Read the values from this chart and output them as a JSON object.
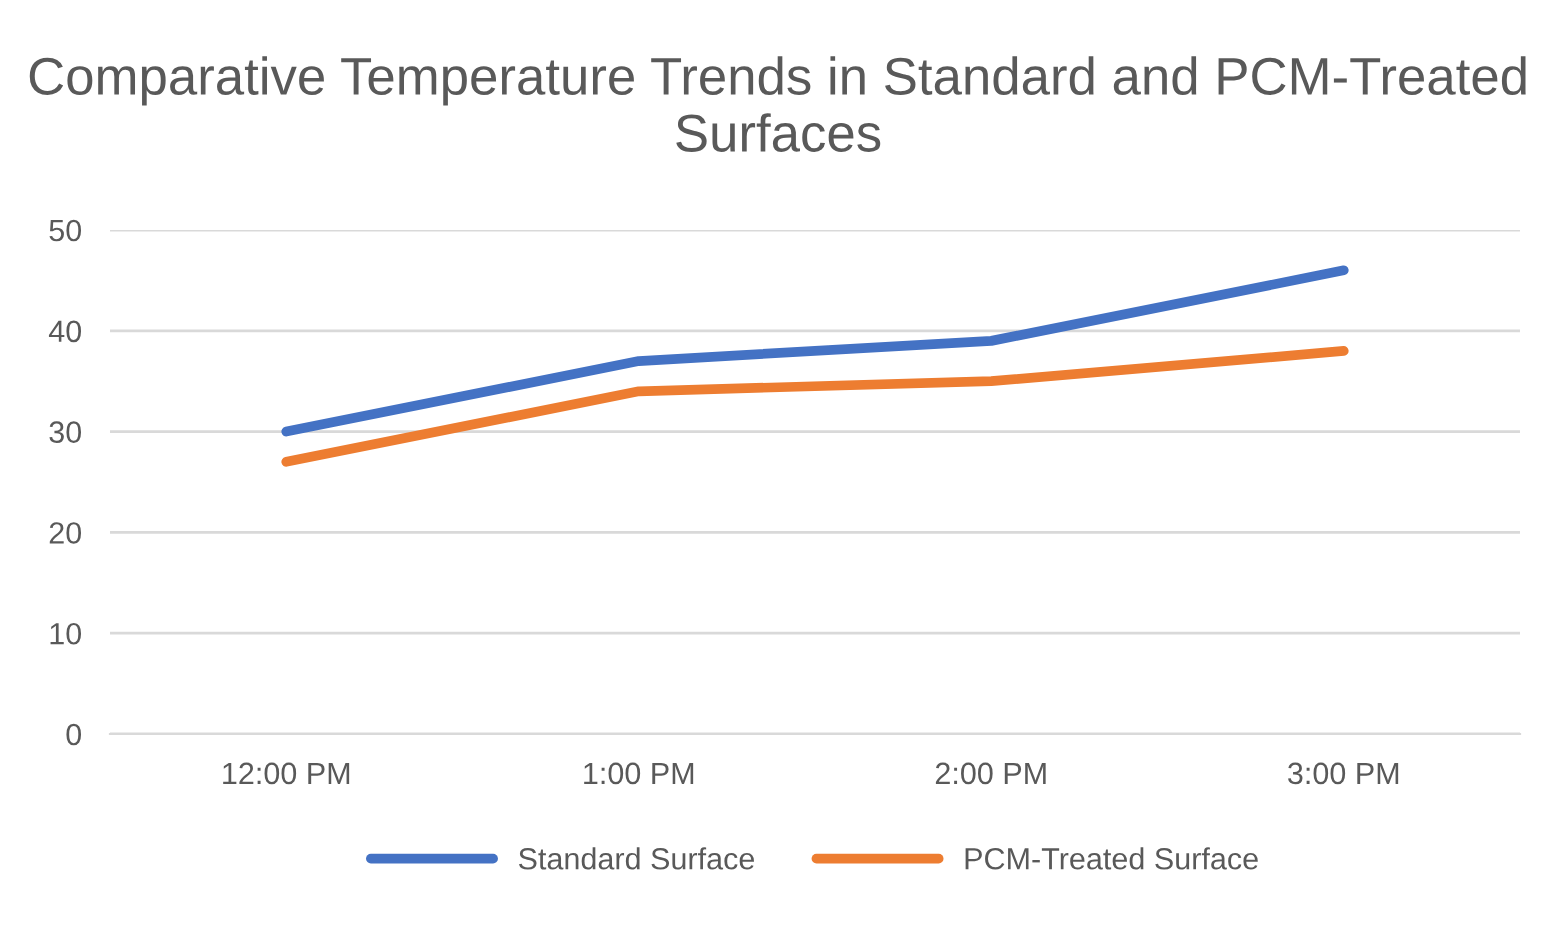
{
  "chart_data": {
    "type": "line",
    "title": "Comparative Temperature Trends in Standard and PCM-Treated Surfaces",
    "categories": [
      "12:00 PM",
      "1:00 PM",
      "2:00 PM",
      "3:00 PM"
    ],
    "series": [
      {
        "name": "Standard Surface",
        "color": "#4472c4",
        "values": [
          30,
          37,
          39,
          46
        ]
      },
      {
        "name": "PCM-Treated Surface",
        "color": "#ed7d31",
        "values": [
          27,
          34,
          35,
          38
        ]
      }
    ],
    "ylim": [
      0,
      50
    ],
    "yticks": [
      0,
      10,
      20,
      30,
      40,
      50
    ],
    "grid": "y",
    "legend": "bottom",
    "marker": "none",
    "line_style": "solid"
  }
}
